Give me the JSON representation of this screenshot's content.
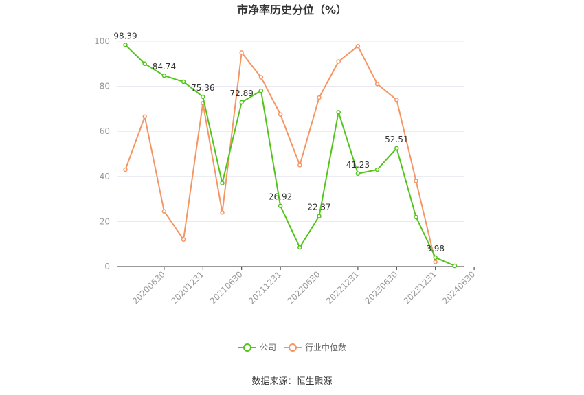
{
  "chart_data": {
    "type": "line",
    "title": "市净率历史分位（%）",
    "xlabel": "",
    "ylabel": "",
    "ylim": [
      0,
      100
    ],
    "yticks": [
      0,
      20,
      40,
      60,
      80,
      100
    ],
    "grid": true,
    "legend_position": "bottom",
    "x_tick_labels": [
      "20200630",
      "20201231",
      "20210630",
      "20211231",
      "20220630",
      "20221231",
      "20230630",
      "20231231",
      "20240630"
    ],
    "x_tick_every": 2,
    "series": [
      {
        "name": "公司",
        "color": "#52c41a",
        "values": [
          98.39,
          90.0,
          84.74,
          82.0,
          75.36,
          37.0,
          72.89,
          78.0,
          26.92,
          8.5,
          22.37,
          68.5,
          41.23,
          43.0,
          52.51,
          22.0,
          3.98,
          0.3
        ],
        "labels": [
          "98.39",
          "",
          "84.74",
          "",
          "75.36",
          "",
          "72.89",
          "",
          "26.92",
          "",
          "22.37",
          "",
          "41.23",
          "",
          "52.51",
          "",
          "3.98",
          ""
        ]
      },
      {
        "name": "行业中位数",
        "color": "#f59563",
        "values": [
          43.0,
          66.5,
          24.5,
          12.0,
          72.5,
          24.0,
          95.0,
          84.0,
          67.5,
          45.0,
          75.0,
          91.0,
          97.8,
          81.0,
          74.0,
          38.0,
          2.0,
          null
        ],
        "labels": []
      }
    ]
  },
  "source_text": "数据来源：恒生聚源"
}
